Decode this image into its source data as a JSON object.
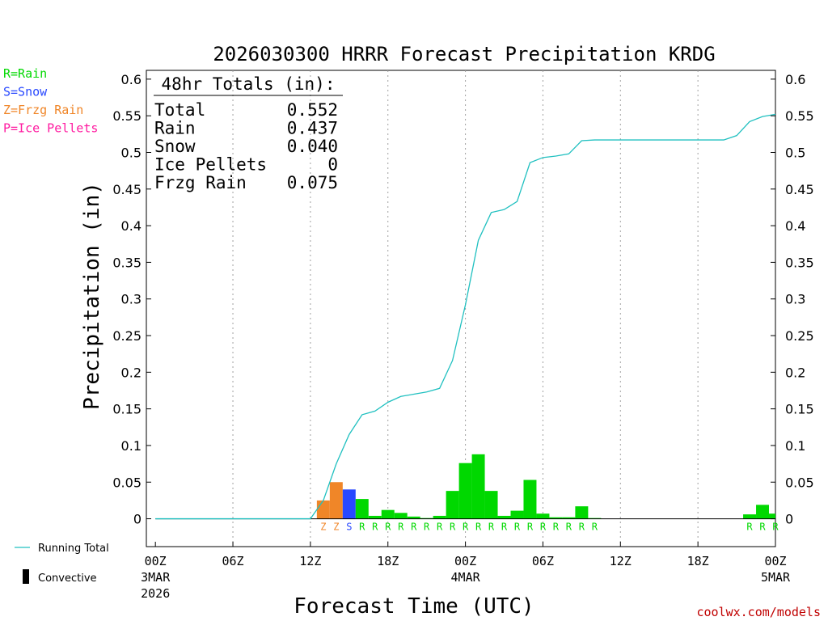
{
  "chart_data": {
    "type": "bar",
    "title": "2026030300 HRRR Forecast Precipitation KRDG",
    "xlabel": "Forecast Time (UTC)",
    "ylabel": "Precipitation (in)",
    "ylim": [
      -0.038,
      0.612
    ],
    "y_ticks": [
      0,
      0.05,
      0.1,
      0.15,
      0.2,
      0.25,
      0.3,
      0.35,
      0.4,
      0.45,
      0.5,
      0.55,
      0.6
    ],
    "y_tick_labels": [
      "0",
      "0.05",
      "0.1",
      "0.15",
      "0.2",
      "0.25",
      "0.3",
      "0.35",
      "0.4",
      "0.45",
      "0.5",
      "0.55",
      "0.6"
    ],
    "x_range_hours": [
      -0.7,
      48
    ],
    "x_ticks": [
      {
        "hour": 0,
        "label": "00Z",
        "sub1": "3MAR",
        "sub2": "2026"
      },
      {
        "hour": 6,
        "label": "06Z",
        "sub1": "",
        "sub2": ""
      },
      {
        "hour": 12,
        "label": "12Z",
        "sub1": "",
        "sub2": ""
      },
      {
        "hour": 18,
        "label": "18Z",
        "sub1": "",
        "sub2": ""
      },
      {
        "hour": 24,
        "label": "00Z",
        "sub1": "4MAR",
        "sub2": ""
      },
      {
        "hour": 30,
        "label": "06Z",
        "sub1": "",
        "sub2": ""
      },
      {
        "hour": 36,
        "label": "12Z",
        "sub1": "",
        "sub2": ""
      },
      {
        "hour": 42,
        "label": "18Z",
        "sub1": "",
        "sub2": ""
      },
      {
        "hour": 48,
        "label": "00Z",
        "sub1": "5MAR",
        "sub2": ""
      }
    ],
    "gridlines_hours": [
      6,
      12,
      18,
      24,
      30,
      36,
      42
    ],
    "bars": [
      {
        "hour": 13,
        "value": 0.025,
        "ptype": "Z"
      },
      {
        "hour": 14,
        "value": 0.05,
        "ptype": "Z"
      },
      {
        "hour": 15,
        "value": 0.04,
        "ptype": "S"
      },
      {
        "hour": 16,
        "value": 0.027,
        "ptype": "R"
      },
      {
        "hour": 17,
        "value": 0.004,
        "ptype": "R"
      },
      {
        "hour": 18,
        "value": 0.012,
        "ptype": "R"
      },
      {
        "hour": 19,
        "value": 0.008,
        "ptype": "R"
      },
      {
        "hour": 20,
        "value": 0.003,
        "ptype": "R"
      },
      {
        "hour": 21,
        "value": 0.001,
        "ptype": "R"
      },
      {
        "hour": 22,
        "value": 0.004,
        "ptype": "R"
      },
      {
        "hour": 23,
        "value": 0.038,
        "ptype": "R"
      },
      {
        "hour": 24,
        "value": 0.076,
        "ptype": "R"
      },
      {
        "hour": 25,
        "value": 0.088,
        "ptype": "R"
      },
      {
        "hour": 26,
        "value": 0.038,
        "ptype": "R"
      },
      {
        "hour": 27,
        "value": 0.004,
        "ptype": "R"
      },
      {
        "hour": 28,
        "value": 0.011,
        "ptype": "R"
      },
      {
        "hour": 29,
        "value": 0.053,
        "ptype": "R"
      },
      {
        "hour": 30,
        "value": 0.007,
        "ptype": "R"
      },
      {
        "hour": 31,
        "value": 0.002,
        "ptype": "R"
      },
      {
        "hour": 32,
        "value": 0.002,
        "ptype": "R"
      },
      {
        "hour": 33,
        "value": 0.017,
        "ptype": "R"
      },
      {
        "hour": 34,
        "value": 0.001,
        "ptype": "R"
      },
      {
        "hour": 46,
        "value": 0.006,
        "ptype": "R"
      },
      {
        "hour": 47,
        "value": 0.019,
        "ptype": "R"
      },
      {
        "hour": 48,
        "value": 0.007,
        "ptype": "R"
      }
    ],
    "series": [
      {
        "name": "Running Total",
        "color": "#20c0c0",
        "x": [
          0,
          12,
          13,
          14,
          15,
          16,
          17,
          18,
          19,
          20,
          21,
          22,
          23,
          24,
          25,
          26,
          27,
          28,
          29,
          30,
          31,
          32,
          33,
          34,
          35,
          36,
          40,
          44,
          45,
          46,
          47,
          48
        ],
        "y": [
          0,
          0,
          0.025,
          0.075,
          0.115,
          0.142,
          0.147,
          0.159,
          0.167,
          0.17,
          0.173,
          0.178,
          0.216,
          0.292,
          0.38,
          0.418,
          0.422,
          0.433,
          0.486,
          0.493,
          0.495,
          0.498,
          0.516,
          0.517,
          0.517,
          0.517,
          0.517,
          0.517,
          0.523,
          0.542,
          0.549,
          0.552
        ]
      }
    ],
    "ptype_colors": {
      "R": "#00d800",
      "S": "#2848ff",
      "Z": "#f08628",
      "P": "#ff1aa0"
    },
    "ptype_legend": [
      {
        "code": "R",
        "text": "R=Rain",
        "color": "#00d800"
      },
      {
        "code": "S",
        "text": "S=Snow",
        "color": "#2848ff"
      },
      {
        "code": "Z",
        "text": "Z=Frzg Rain",
        "color": "#f08628"
      },
      {
        "code": "P",
        "text": "P=Ice Pellets",
        "color": "#ff1aa0"
      }
    ],
    "totals_box": {
      "heading": "48hr Totals (in):",
      "rows": [
        {
          "label": "Total",
          "value": "0.552"
        },
        {
          "label": "Rain",
          "value": "0.437"
        },
        {
          "label": "Snow",
          "value": "0.040"
        },
        {
          "label": "Ice Pellets",
          "value": "0"
        },
        {
          "label": "Frzg Rain",
          "value": "0.075"
        }
      ]
    },
    "bottom_legend": {
      "running_total_label": "Running Total",
      "convective_label": "Convective"
    },
    "credit": "coolwx.com/models"
  }
}
